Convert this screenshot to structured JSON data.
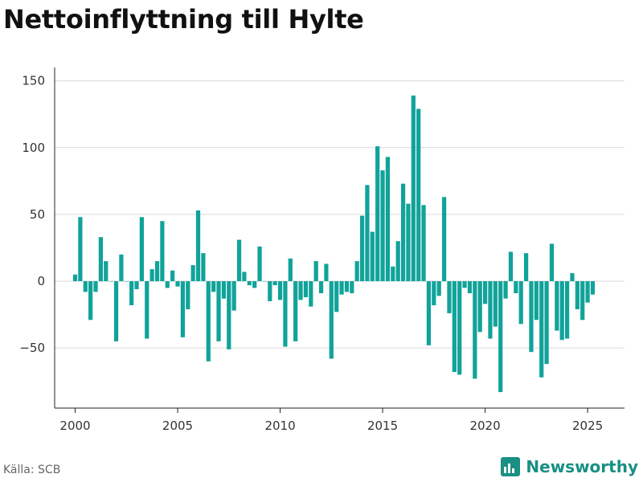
{
  "title": "Nettoinflyttning till Hylte",
  "source": "Källa: SCB",
  "brand": "Newsworthy",
  "colors": {
    "bar": "#11a39a",
    "grid": "#d9d9d9",
    "axis": "#222222",
    "brand": "#1a8f84"
  },
  "chart_data": {
    "type": "bar",
    "title": "Nettoinflyttning till Hylte",
    "xlabel": "",
    "ylabel": "",
    "ylim": [
      -95,
      160
    ],
    "xlim": [
      1999.0,
      2026.8
    ],
    "yticks": [
      150,
      100,
      50,
      0,
      -50
    ],
    "ytick_labels": [
      "150",
      "100",
      "50",
      "0",
      "−50"
    ],
    "xticks": [
      2000,
      2005,
      2010,
      2015,
      2020,
      2025
    ],
    "grid": true,
    "x": [
      2000.0,
      2000.25,
      2000.5,
      2000.75,
      2001.0,
      2001.25,
      2001.5,
      2001.75,
      2002.0,
      2002.25,
      2002.5,
      2002.75,
      2003.0,
      2003.25,
      2003.5,
      2003.75,
      2004.0,
      2004.25,
      2004.5,
      2004.75,
      2005.0,
      2005.25,
      2005.5,
      2005.75,
      2006.0,
      2006.25,
      2006.5,
      2006.75,
      2007.0,
      2007.25,
      2007.5,
      2007.75,
      2008.0,
      2008.25,
      2008.5,
      2008.75,
      2009.0,
      2009.25,
      2009.5,
      2009.75,
      2010.0,
      2010.25,
      2010.5,
      2010.75,
      2011.0,
      2011.25,
      2011.5,
      2011.75,
      2012.0,
      2012.25,
      2012.5,
      2012.75,
      2013.0,
      2013.25,
      2013.5,
      2013.75,
      2014.0,
      2014.25,
      2014.5,
      2014.75,
      2015.0,
      2015.25,
      2015.5,
      2015.75,
      2016.0,
      2016.25,
      2016.5,
      2016.75,
      2017.0,
      2017.25,
      2017.5,
      2017.75,
      2018.0,
      2018.25,
      2018.5,
      2018.75,
      2019.0,
      2019.25,
      2019.5,
      2019.75,
      2020.0,
      2020.25,
      2020.5,
      2020.75,
      2021.0,
      2021.25,
      2021.5,
      2021.75,
      2022.0,
      2022.25,
      2022.5,
      2022.75,
      2023.0,
      2023.25,
      2023.5,
      2023.75,
      2024.0,
      2024.25,
      2024.5,
      2024.75,
      2025.0,
      2025.25
    ],
    "values": [
      5,
      48,
      -8,
      -29,
      -8,
      33,
      15,
      0,
      -45,
      20,
      0,
      -18,
      -6,
      48,
      -43,
      9,
      15,
      45,
      -5,
      8,
      -4,
      -42,
      -21,
      12,
      53,
      21,
      -60,
      -8,
      -45,
      -13,
      -51,
      -22,
      31,
      7,
      -3,
      -5,
      26,
      0,
      -15,
      -3,
      -14,
      -49,
      17,
      -45,
      -14,
      -12,
      -19,
      15,
      -9,
      13,
      -58,
      -23,
      -10,
      -8,
      -9,
      15,
      49,
      72,
      37,
      101,
      83,
      93,
      11,
      30,
      73,
      58,
      139,
      129,
      57,
      -48,
      -18,
      -11,
      63,
      -24,
      -68,
      -70,
      -5,
      -9,
      -73,
      -38,
      -17,
      -43,
      -34,
      -83,
      -13,
      22,
      -9,
      -32,
      21,
      -53,
      -29,
      -72,
      -62,
      28,
      -37,
      -44,
      -43,
      6,
      -21,
      -29,
      -16,
      -10
    ]
  }
}
